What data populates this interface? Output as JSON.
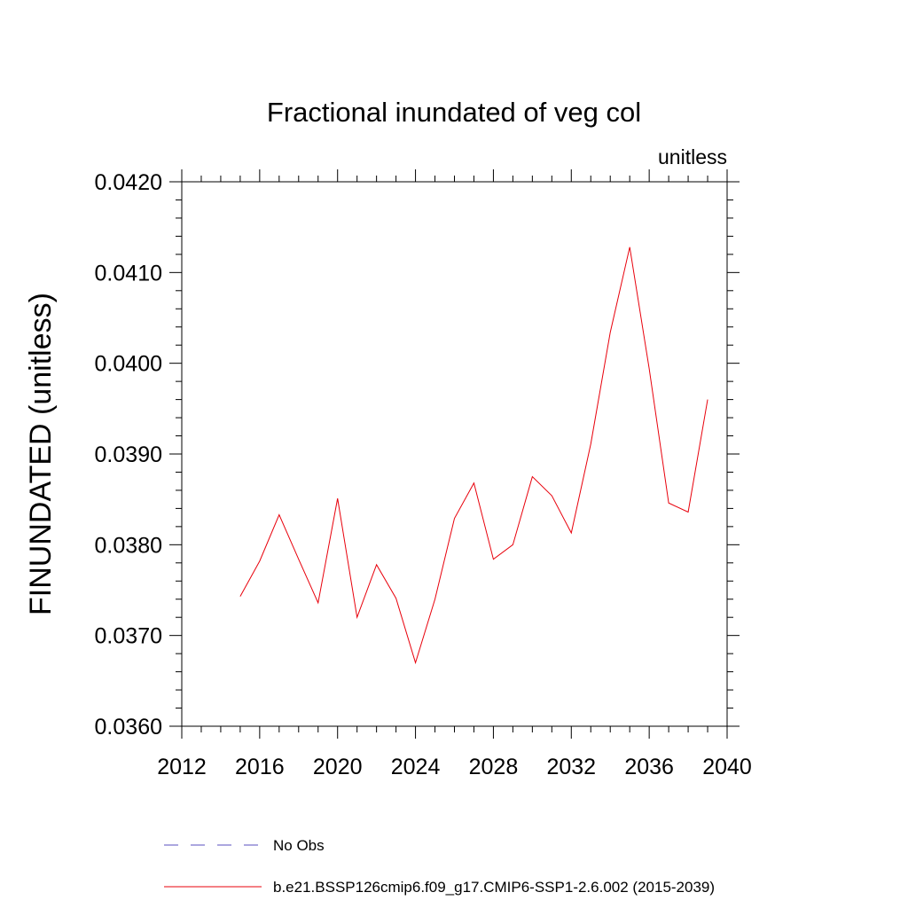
{
  "chart_data": {
    "type": "line",
    "title": "Fractional inundated of veg col",
    "units_label": "unitless",
    "xlabel": "",
    "ylabel": "FINUNDATED  (unitless)",
    "xlim": [
      2012,
      2040
    ],
    "ylim": [
      0.036,
      0.042
    ],
    "x_ticks": [
      2012,
      2016,
      2020,
      2024,
      2028,
      2032,
      2036,
      2040
    ],
    "x_tick_labels": [
      "2012",
      "2016",
      "2020",
      "2024",
      "2028",
      "2032",
      "2036",
      "2040"
    ],
    "y_ticks": [
      0.036,
      0.037,
      0.038,
      0.039,
      0.04,
      0.041,
      0.042
    ],
    "y_tick_labels": [
      "0.0360",
      "0.0370",
      "0.0380",
      "0.0390",
      "0.0400",
      "0.0410",
      "0.0420"
    ],
    "grid": false,
    "legend_position": "bottom",
    "series": [
      {
        "name": "b.e21.BSSP126cmip6.f09_g17.CMIP6-SSP1-2.6.002 (2015-2039)",
        "color": "#e8000b",
        "style": "solid",
        "x": [
          2015,
          2016,
          2017,
          2018,
          2019,
          2020,
          2021,
          2022,
          2023,
          2024,
          2025,
          2026,
          2027,
          2028,
          2029,
          2030,
          2031,
          2032,
          2033,
          2034,
          2035,
          2036,
          2037,
          2038,
          2039
        ],
        "y": [
          0.03743,
          0.03782,
          0.03833,
          0.03784,
          0.03736,
          0.03851,
          0.0372,
          0.03778,
          0.03741,
          0.0367,
          0.0374,
          0.03829,
          0.03868,
          0.03784,
          0.038,
          0.03875,
          0.03854,
          0.03813,
          0.03911,
          0.04034,
          0.04128,
          0.03994,
          0.03846,
          0.03836,
          0.0396
        ]
      }
    ],
    "legend": [
      {
        "label": "No Obs",
        "color": "#5a4fbf",
        "style": "dashed"
      },
      {
        "label": "b.e21.BSSP126cmip6.f09_g17.CMIP6-SSP1-2.6.002 (2015-2039)",
        "color": "#e8000b",
        "style": "solid"
      }
    ]
  }
}
